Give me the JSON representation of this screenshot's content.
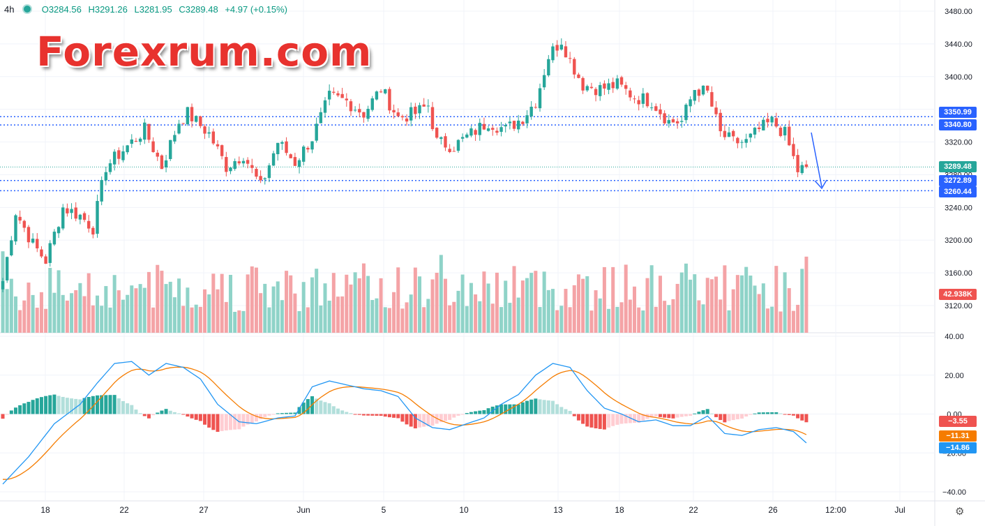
{
  "header": {
    "timeframe": "4h",
    "open": "O3284.56",
    "high": "H3291.26",
    "low": "L3281.95",
    "close": "C3289.48",
    "change": "+4.97 (+0.15%)"
  },
  "watermark": "Forexrum.com",
  "colors": {
    "up": "#26a69a",
    "down": "#ef5350",
    "level": "#2962ff",
    "signal": "#f57c00",
    "macd": "#2196f3"
  },
  "price_labels": {
    "level1": "3350.99",
    "level2": "3340.80",
    "current": "3289.48",
    "level3": "3272.89",
    "level4": "3260.44",
    "volume": "42.938K"
  },
  "macd_labels": {
    "hist": "−3.55",
    "signal": "−11.31",
    "macd": "−14.86"
  },
  "chart_data": {
    "type": "candlestick",
    "price_axis": {
      "ticks": [
        "3480.00",
        "3440.00",
        "3400.00",
        "3360.00",
        "3320.00",
        "3280.00",
        "3240.00",
        "3200.00",
        "3160.00",
        "3120.00"
      ],
      "range": [
        3110,
        3480
      ]
    },
    "macd_axis": {
      "ticks": [
        "40.00",
        "20.00",
        "0.00",
        "−20.00",
        "−40.00"
      ],
      "range": [
        -45,
        42
      ]
    },
    "x_ticks": [
      "18",
      "22",
      "27",
      "Jun",
      "5",
      "10",
      "13",
      "18",
      "22",
      "26",
      "12:00",
      "Jul"
    ],
    "horizontal_levels": [
      3350.99,
      3340.8,
      3272.89,
      3260.44
    ],
    "current_price": 3289.48,
    "close_path": [
      {
        "i": 0,
        "c": 3150
      },
      {
        "i": 3,
        "c": 3235
      },
      {
        "i": 7,
        "c": 3195
      },
      {
        "i": 10,
        "c": 3175
      },
      {
        "i": 14,
        "c": 3240
      },
      {
        "i": 18,
        "c": 3230
      },
      {
        "i": 21,
        "c": 3215
      },
      {
        "i": 24,
        "c": 3290
      },
      {
        "i": 28,
        "c": 3310
      },
      {
        "i": 33,
        "c": 3335
      },
      {
        "i": 37,
        "c": 3290
      },
      {
        "i": 41,
        "c": 3345
      },
      {
        "i": 43,
        "c": 3355
      },
      {
        "i": 48,
        "c": 3330
      },
      {
        "i": 52,
        "c": 3290
      },
      {
        "i": 56,
        "c": 3305
      },
      {
        "i": 60,
        "c": 3265
      },
      {
        "i": 64,
        "c": 3320
      },
      {
        "i": 68,
        "c": 3295
      },
      {
        "i": 72,
        "c": 3325
      },
      {
        "i": 76,
        "c": 3375
      },
      {
        "i": 80,
        "c": 3370
      },
      {
        "i": 84,
        "c": 3355
      },
      {
        "i": 88,
        "c": 3385
      },
      {
        "i": 92,
        "c": 3350
      },
      {
        "i": 96,
        "c": 3355
      },
      {
        "i": 99,
        "c": 3365
      },
      {
        "i": 101,
        "c": 3320
      },
      {
        "i": 105,
        "c": 3315
      },
      {
        "i": 109,
        "c": 3330
      },
      {
        "i": 113,
        "c": 3345
      },
      {
        "i": 117,
        "c": 3335
      },
      {
        "i": 121,
        "c": 3350
      },
      {
        "i": 124,
        "c": 3370
      },
      {
        "i": 127,
        "c": 3425
      },
      {
        "i": 130,
        "c": 3445
      },
      {
        "i": 132,
        "c": 3420
      },
      {
        "i": 135,
        "c": 3390
      },
      {
        "i": 139,
        "c": 3385
      },
      {
        "i": 143,
        "c": 3390
      },
      {
        "i": 147,
        "c": 3375
      },
      {
        "i": 151,
        "c": 3370
      },
      {
        "i": 155,
        "c": 3345
      },
      {
        "i": 158,
        "c": 3345
      },
      {
        "i": 161,
        "c": 3385
      },
      {
        "i": 164,
        "c": 3380
      },
      {
        "i": 167,
        "c": 3330
      },
      {
        "i": 170,
        "c": 3320
      },
      {
        "i": 173,
        "c": 3320
      },
      {
        "i": 176,
        "c": 3335
      },
      {
        "i": 179,
        "c": 3345
      },
      {
        "i": 182,
        "c": 3330
      },
      {
        "i": 185,
        "c": 3285
      },
      {
        "i": 187,
        "c": 3289.48
      }
    ],
    "candle_count": 188,
    "volume_max_k": 120,
    "volume_last": "42.938K",
    "macd_path": [
      {
        "i": 0,
        "m": -36
      },
      {
        "i": 6,
        "m": -22
      },
      {
        "i": 12,
        "m": -5
      },
      {
        "i": 18,
        "m": 5
      },
      {
        "i": 22,
        "m": 16
      },
      {
        "i": 26,
        "m": 26
      },
      {
        "i": 30,
        "m": 27
      },
      {
        "i": 34,
        "m": 20
      },
      {
        "i": 38,
        "m": 26
      },
      {
        "i": 42,
        "m": 24
      },
      {
        "i": 46,
        "m": 18
      },
      {
        "i": 50,
        "m": 5
      },
      {
        "i": 55,
        "m": -4
      },
      {
        "i": 59,
        "m": -5
      },
      {
        "i": 64,
        "m": -2
      },
      {
        "i": 68,
        "m": -1
      },
      {
        "i": 72,
        "m": 14
      },
      {
        "i": 76,
        "m": 17
      },
      {
        "i": 80,
        "m": 15
      },
      {
        "i": 84,
        "m": 13
      },
      {
        "i": 88,
        "m": 12
      },
      {
        "i": 92,
        "m": 9
      },
      {
        "i": 96,
        "m": -2
      },
      {
        "i": 100,
        "m": -7
      },
      {
        "i": 104,
        "m": -8
      },
      {
        "i": 108,
        "m": -5
      },
      {
        "i": 112,
        "m": -2
      },
      {
        "i": 116,
        "m": 5
      },
      {
        "i": 120,
        "m": 10
      },
      {
        "i": 124,
        "m": 20
      },
      {
        "i": 128,
        "m": 26
      },
      {
        "i": 132,
        "m": 24
      },
      {
        "i": 136,
        "m": 12
      },
      {
        "i": 140,
        "m": 3
      },
      {
        "i": 144,
        "m": 0
      },
      {
        "i": 148,
        "m": -4
      },
      {
        "i": 152,
        "m": -3
      },
      {
        "i": 156,
        "m": -6
      },
      {
        "i": 160,
        "m": -6
      },
      {
        "i": 164,
        "m": -1
      },
      {
        "i": 168,
        "m": -10
      },
      {
        "i": 172,
        "m": -11
      },
      {
        "i": 176,
        "m": -8
      },
      {
        "i": 180,
        "m": -7
      },
      {
        "i": 184,
        "m": -9
      },
      {
        "i": 187,
        "m": -14.86
      }
    ]
  }
}
